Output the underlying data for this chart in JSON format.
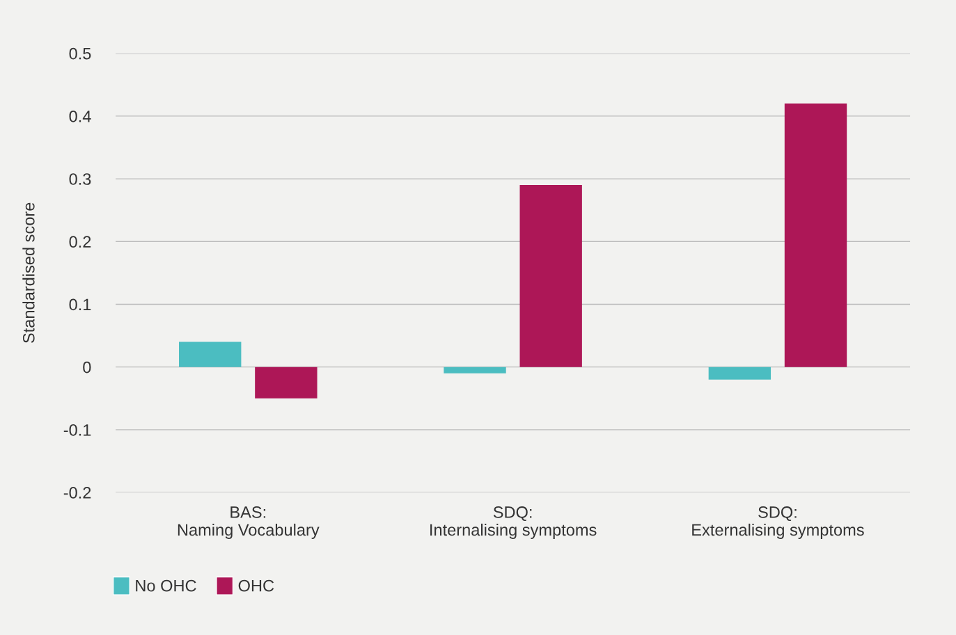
{
  "chart_data": {
    "type": "bar",
    "ylabel": "Standardised score",
    "categories": [
      "BAS:\nNaming Vocabulary",
      "SDQ:\nInternalising symptoms",
      "SDQ:\nExternalising symptoms"
    ],
    "series": [
      {
        "name": "No OHC",
        "color": "#4bbdc1",
        "values": [
          0.04,
          -0.01,
          -0.02
        ]
      },
      {
        "name": "OHC",
        "color": "#ad1757",
        "values": [
          -0.05,
          0.29,
          0.42
        ]
      }
    ],
    "ylim": [
      -0.2,
      0.5
    ],
    "yticks": [
      {
        "value": -0.2,
        "label": "-0.2"
      },
      {
        "value": -0.1,
        "label": "-0.1"
      },
      0,
      0.1,
      0.2,
      0.3,
      0.4,
      0.5
    ],
    "grid": "y",
    "legend": "bottom left"
  }
}
